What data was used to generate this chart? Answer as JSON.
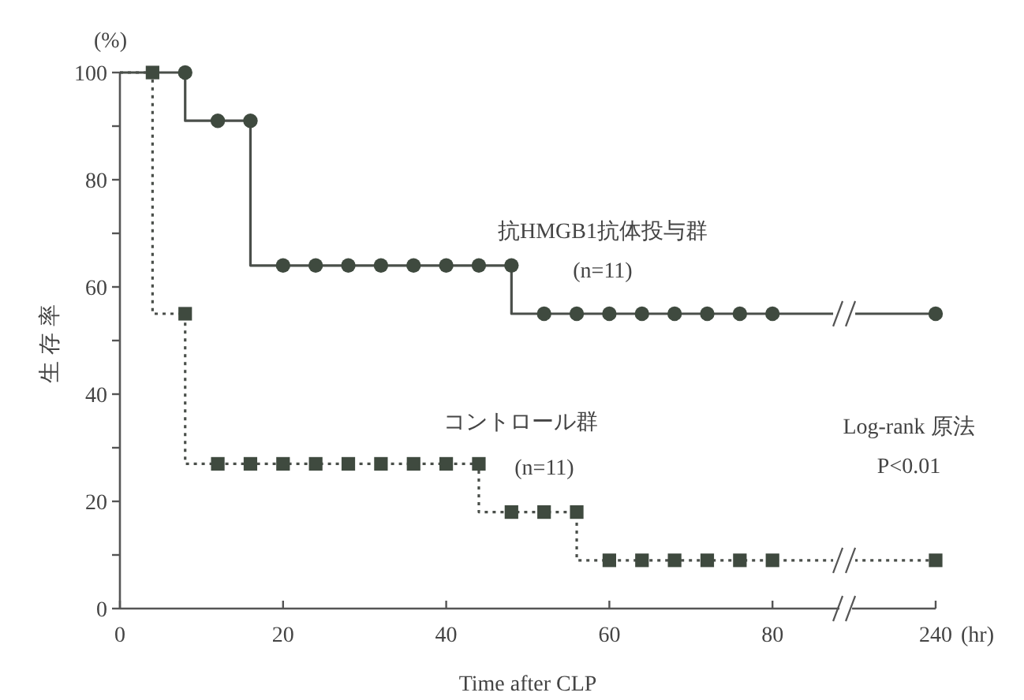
{
  "chart_data": {
    "type": "step",
    "xlabel": "Time after CLP",
    "ylabel": "生存率",
    "categories": [
      "0",
      null,
      null,
      null,
      null,
      "20",
      null,
      null,
      null,
      null,
      "40",
      null,
      null,
      null,
      null,
      "60",
      null,
      null,
      null,
      null,
      "80",
      null,
      null,
      null,
      null,
      "240"
    ],
    "ylim": [
      0,
      100
    ],
    "yticks": [
      0,
      {
        "value": 10,
        "label": null
      },
      20,
      {
        "value": 30,
        "label": null
      },
      40,
      {
        "value": 50,
        "label": null
      },
      60,
      {
        "value": 70,
        "label": null
      },
      80,
      {
        "value": 90,
        "label": null
      },
      100
    ],
    "grid": false,
    "series": [
      {
        "color": "#4a4f4a",
        "line_style": "solid",
        "marker": "none",
        "values": [
          100,
          100,
          91,
          91,
          64,
          64,
          64,
          64,
          64,
          64,
          64,
          64,
          55,
          55,
          55,
          55,
          55,
          55,
          55,
          55,
          55,
          55,
          55,
          55,
          55,
          55
        ]
      },
      {
        "type": "scatter",
        "color": "#3f4a3f",
        "marker": "circle",
        "values": [
          null,
          null,
          100,
          91,
          91,
          64,
          64,
          64,
          64,
          64,
          64,
          64,
          64,
          55,
          55,
          55,
          55,
          55,
          55,
          55,
          55,
          null,
          null,
          null,
          null,
          55
        ]
      },
      {
        "color": "#4a4f4a",
        "line_style": "dotted",
        "marker": "none",
        "values": [
          100,
          55,
          27,
          27,
          27,
          27,
          27,
          27,
          27,
          27,
          27,
          18,
          18,
          18,
          9,
          9,
          9,
          9,
          9,
          9,
          9,
          9,
          9,
          9,
          9,
          9
        ]
      },
      {
        "type": "scatter",
        "color": "#3f4a3f",
        "marker": "square",
        "values": [
          null,
          100,
          55,
          27,
          27,
          27,
          27,
          27,
          27,
          27,
          27,
          27,
          18,
          18,
          18,
          9,
          9,
          9,
          9,
          9,
          9,
          null,
          null,
          null,
          null,
          9
        ]
      }
    ],
    "annotations": [
      "抗HMGB1抗体投与群",
      "(n=11)",
      "コントロール群",
      "(n=11)",
      "Log-rank 原法",
      "P<0.01",
      "(%)",
      "(hr)"
    ]
  }
}
